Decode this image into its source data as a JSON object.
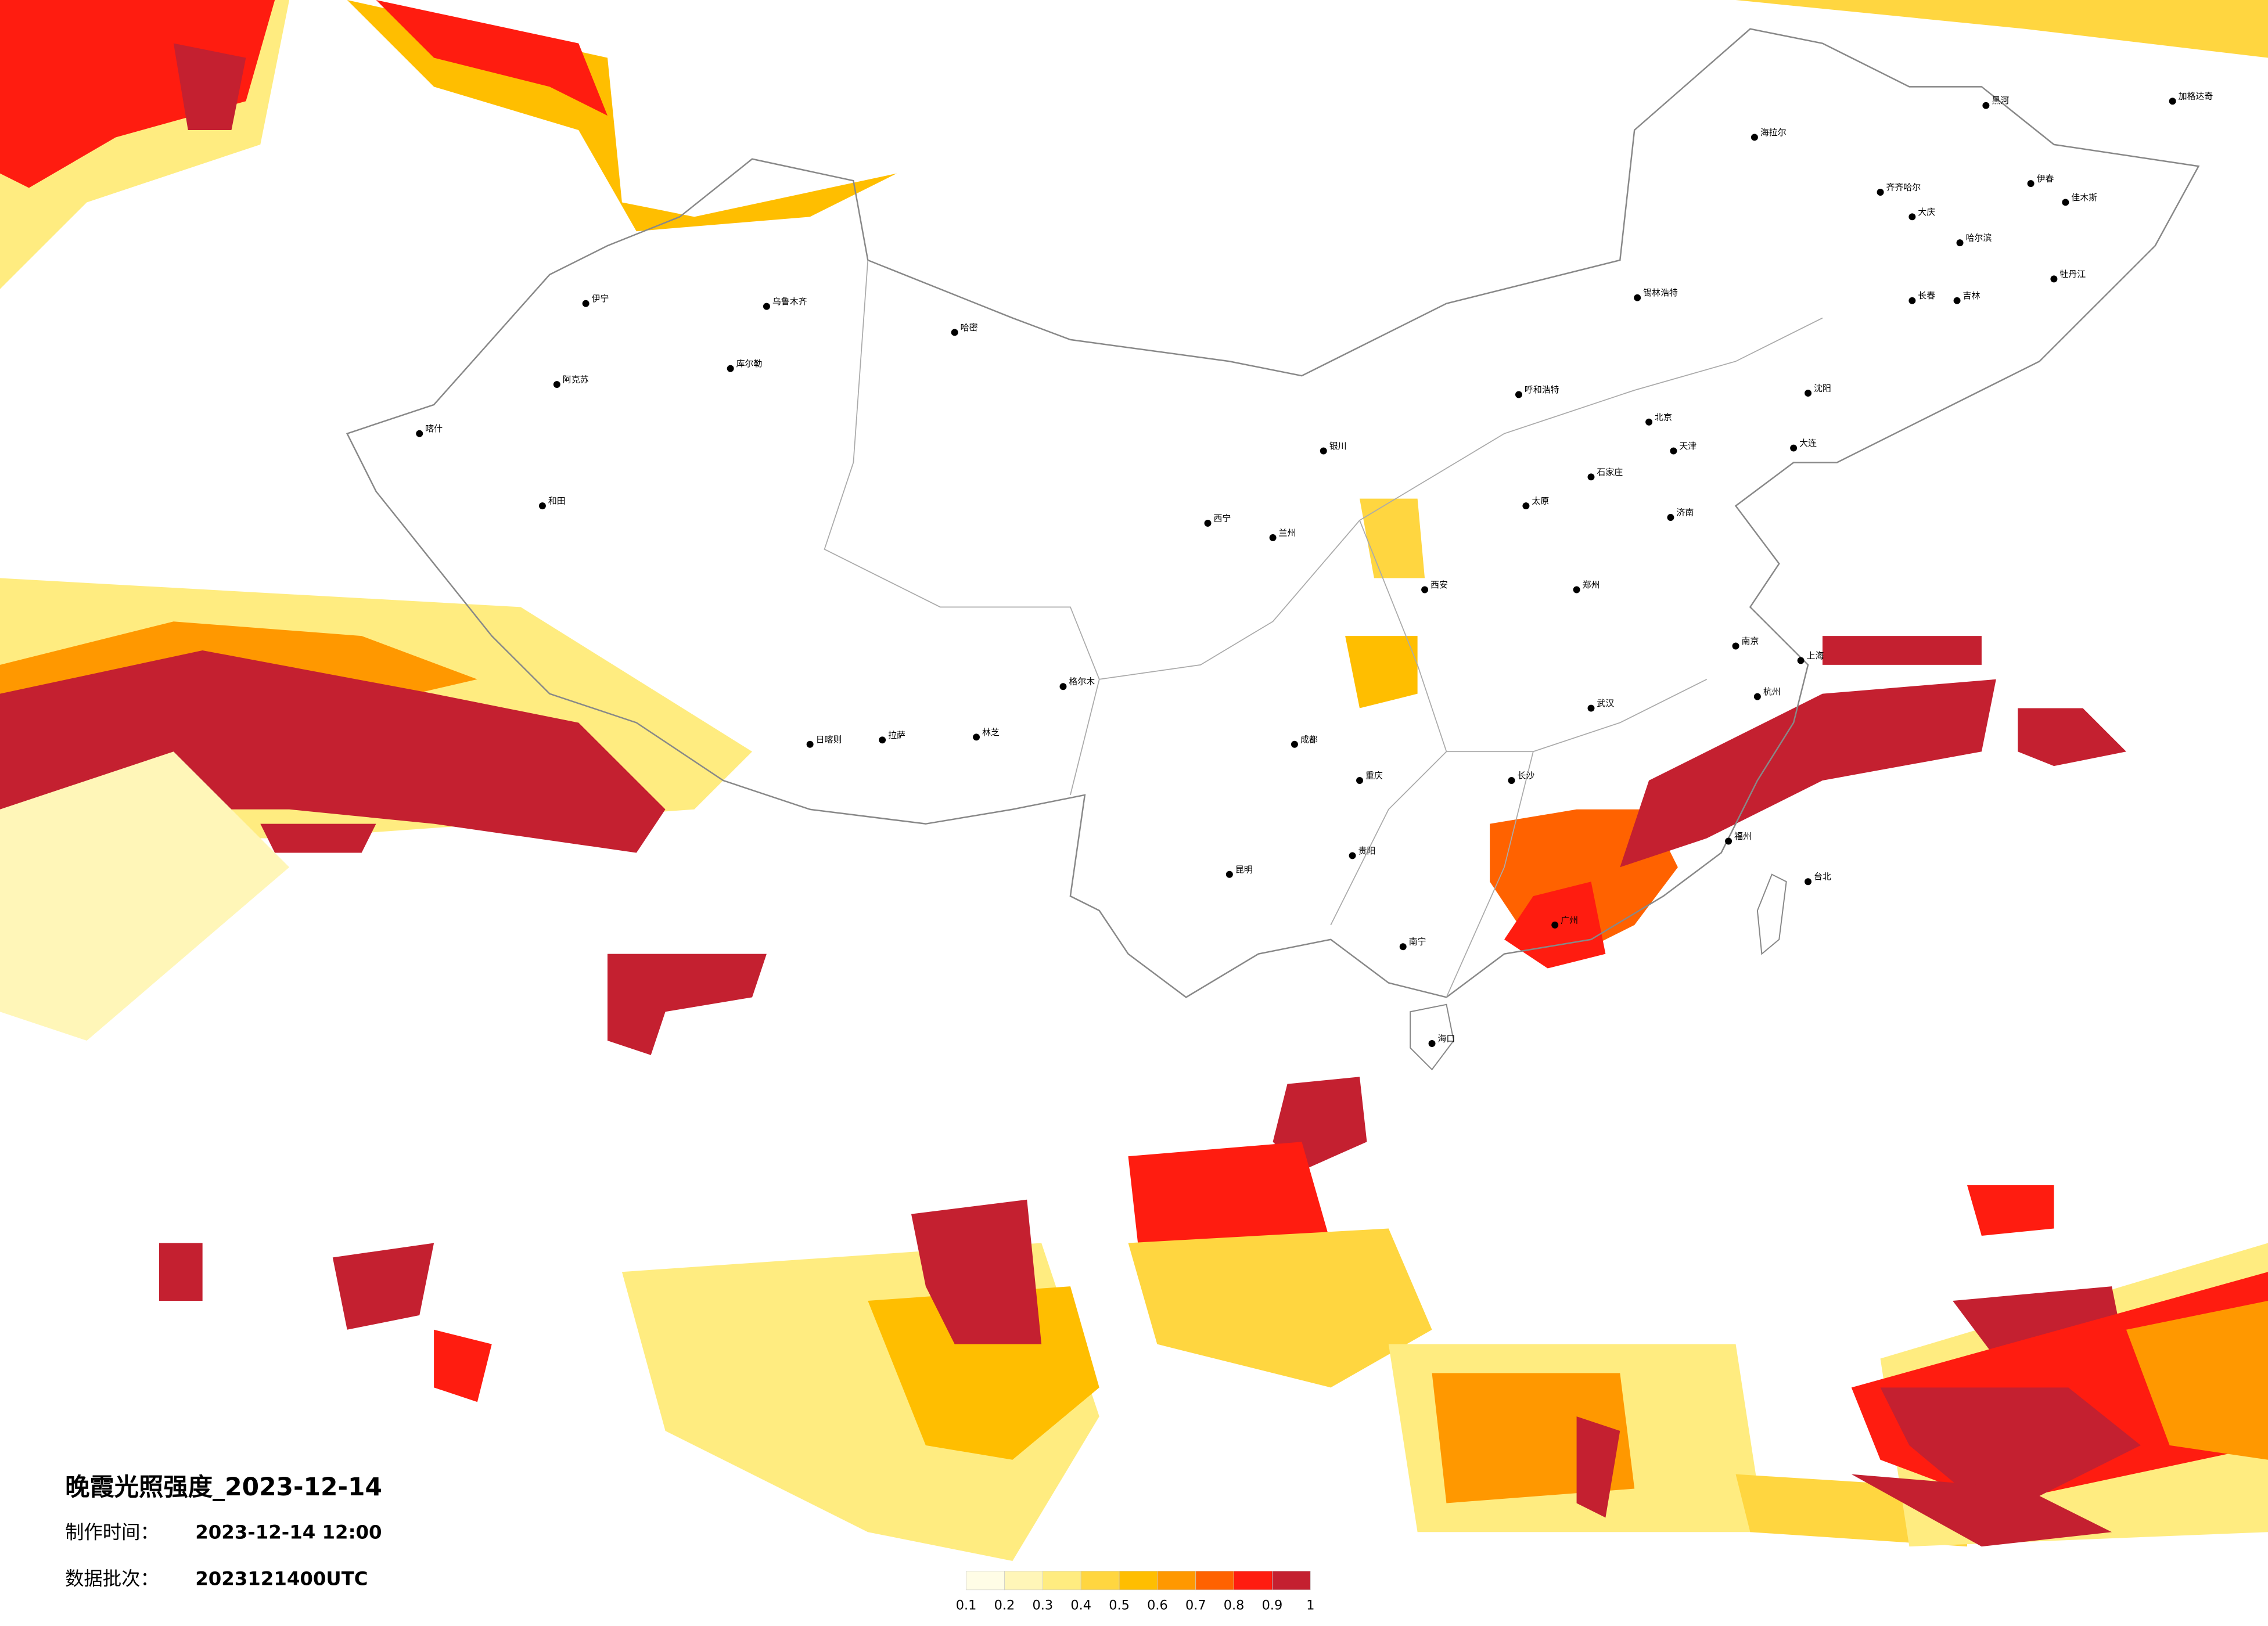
{
  "title": "晚霞光照强度_2023-12-14",
  "made_label": "制作时间：",
  "made_time": "2023-12-14 12:00",
  "batch_label": "数据批次：",
  "batch": "2023121400UTC",
  "legend": {
    "colors": [
      "#fffde6",
      "#fff6b8",
      "#ffec80",
      "#ffd640",
      "#ffbe00",
      "#ff9800",
      "#ff6200",
      "#ff1c10",
      "#c42030"
    ],
    "ticks": [
      0.1,
      0.2,
      0.3,
      0.4,
      0.5,
      0.6,
      0.7,
      0.8,
      0.9,
      1
    ]
  },
  "cities": [
    "加格达奇",
    "海拉尔",
    "黑河",
    "伊春",
    "齐齐哈尔",
    "大庆",
    "哈尔滨",
    "佳木斯",
    "牡丹江",
    "长春",
    "吉林",
    "呼和浩特",
    "锡林浩特",
    "北京",
    "天津",
    "石家庄",
    "太原",
    "济南",
    "郑州",
    "西安",
    "兰州",
    "西宁",
    "银川",
    "乌鲁木齐",
    "伊宁",
    "喀什",
    "和田",
    "阿克苏",
    "哈密",
    "库尔勒",
    "拉萨",
    "日喀则",
    "林芝",
    "格尔木",
    "成都",
    "重庆",
    "贵阳",
    "昆明",
    "南宁",
    "广州",
    "长沙",
    "武汉",
    "南京",
    "上海",
    "杭州",
    "福州",
    "台北",
    "海口",
    "沈阳",
    "大连"
  ]
}
